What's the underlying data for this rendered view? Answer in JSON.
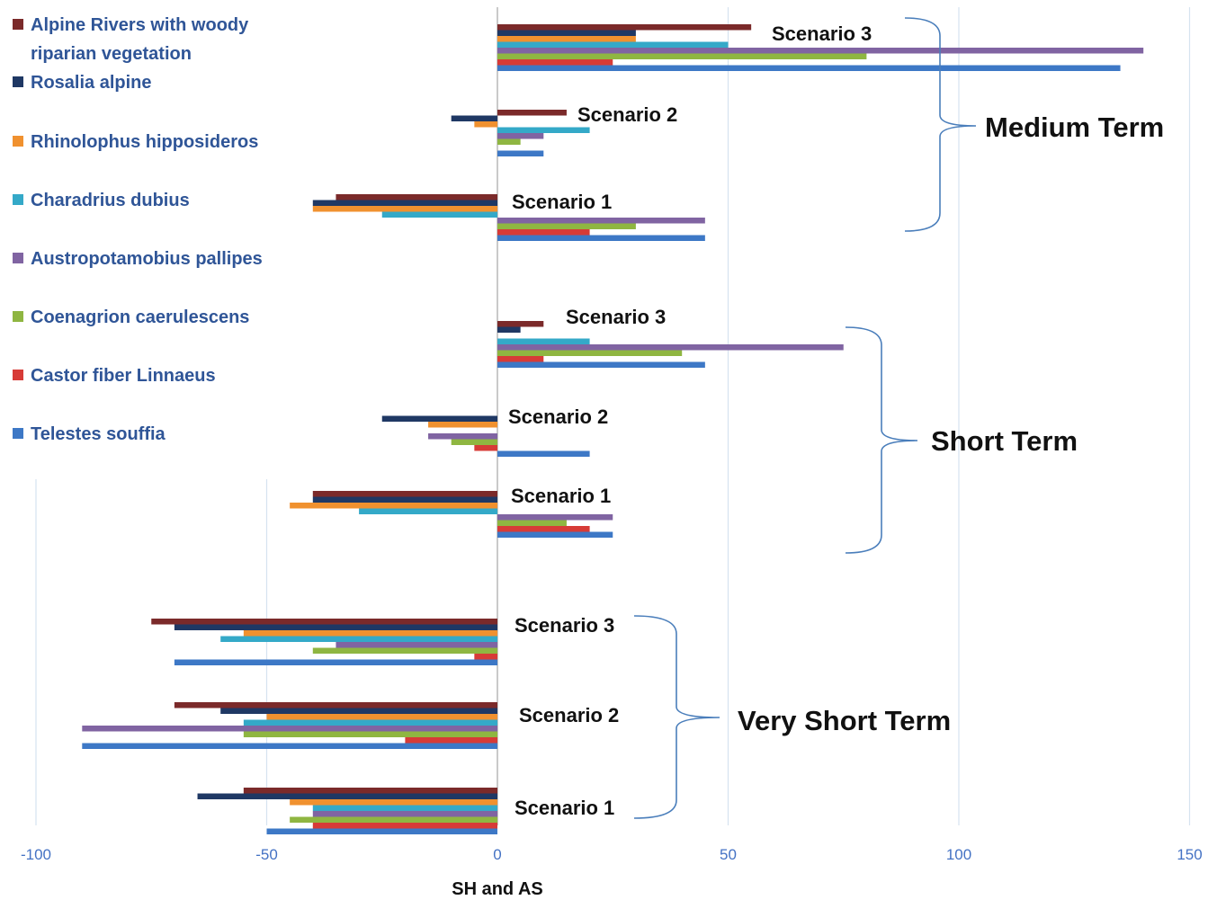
{
  "chart_data": {
    "type": "bar",
    "orientation": "horizontal",
    "xlabel": "SH and AS",
    "xlim": [
      -100,
      150
    ],
    "xticks": [
      -100,
      -50,
      0,
      50,
      100,
      150
    ],
    "grid": "vertical",
    "legend_position": "top-left",
    "series": [
      {
        "name": "Alpine Rivers with woody riparian vegetation",
        "color": "#7b2a2a"
      },
      {
        "name": "Rosalia alpine",
        "color": "#1f3864"
      },
      {
        "name": "Rhinolophus hipposideros",
        "color": "#f0912f"
      },
      {
        "name": "Charadrius dubius",
        "color": "#34a9c8"
      },
      {
        "name": "Austropotamobius pallipes",
        "color": "#8064a2"
      },
      {
        "name": "Coenagrion caerulescens",
        "color": "#8fb641"
      },
      {
        "name": "Castor fiber Linnaeus",
        "color": "#d73b37"
      },
      {
        "name": "Telestes souffia",
        "color": "#3d78c6"
      }
    ],
    "groups": [
      {
        "term": "Very Short Term",
        "scenarios": [
          {
            "label": "Scenario 1",
            "values": [
              -55,
              -65,
              -45,
              -40,
              -40,
              -45,
              -40,
              -50
            ]
          },
          {
            "label": "Scenario 2",
            "values": [
              -70,
              -60,
              -50,
              -55,
              -90,
              -55,
              -20,
              -90
            ]
          },
          {
            "label": "Scenario 3",
            "values": [
              -75,
              -70,
              -55,
              -60,
              -35,
              -40,
              -5,
              -70
            ]
          }
        ]
      },
      {
        "term": "Short Term",
        "scenarios": [
          {
            "label": "Scenario 1",
            "values": [
              -40,
              -40,
              -45,
              -30,
              25,
              15,
              20,
              25
            ]
          },
          {
            "label": "Scenario 2",
            "values": [
              0,
              -25,
              -15,
              0,
              -15,
              -10,
              -5,
              20
            ]
          },
          {
            "label": "Scenario 3",
            "values": [
              10,
              5,
              0,
              20,
              75,
              40,
              10,
              45
            ]
          }
        ]
      },
      {
        "term": "Medium Term",
        "scenarios": [
          {
            "label": "Scenario 1",
            "values": [
              -35,
              -40,
              -40,
              -25,
              45,
              30,
              20,
              45
            ]
          },
          {
            "label": "Scenario 2",
            "values": [
              15,
              -10,
              -5,
              20,
              10,
              5,
              0,
              10
            ]
          },
          {
            "label": "Scenario 3",
            "values": [
              55,
              30,
              30,
              50,
              140,
              80,
              25,
              135
            ]
          }
        ]
      }
    ]
  }
}
